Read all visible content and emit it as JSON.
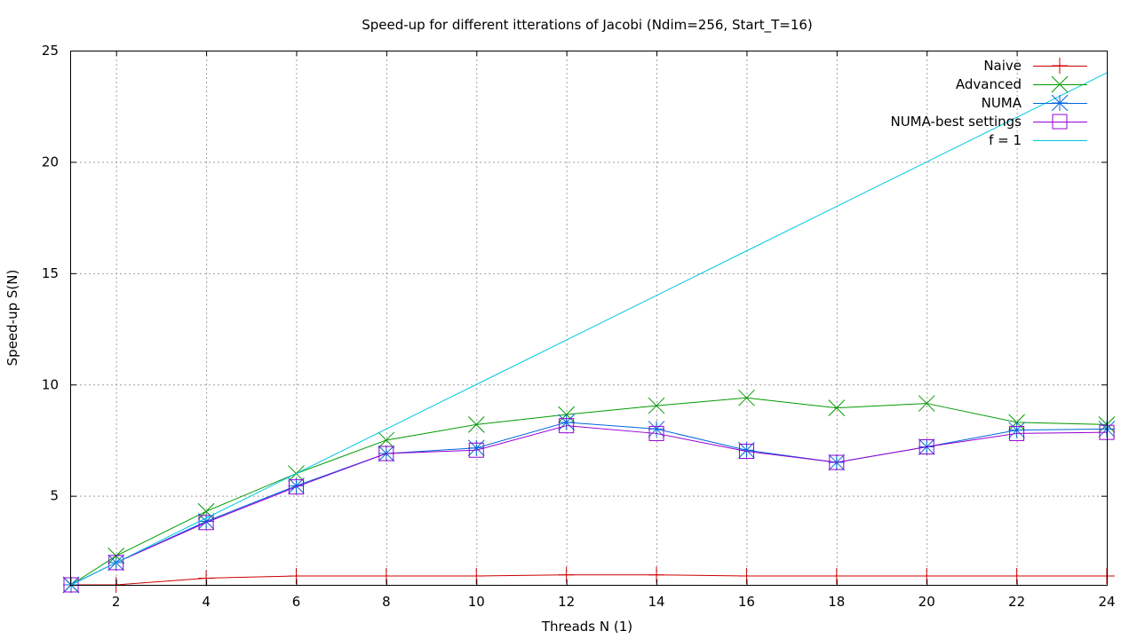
{
  "chart_data": {
    "type": "line",
    "title": "Speed-up for different itterations of Jacobi (Ndim=256, Start_T=16)",
    "xlabel": "Threads N (1)",
    "ylabel": "Speed-up S(N)",
    "xlim": [
      1,
      24
    ],
    "ylim": [
      1,
      25
    ],
    "xticks": [
      2,
      4,
      6,
      8,
      10,
      12,
      14,
      16,
      18,
      20,
      22,
      24
    ],
    "yticks": [
      5,
      10,
      15,
      20,
      25
    ],
    "grid": true,
    "legend_position": "top-right",
    "x": [
      1,
      2,
      4,
      6,
      8,
      10,
      12,
      14,
      16,
      18,
      20,
      22,
      24
    ],
    "series": [
      {
        "name": "Naive",
        "color": "#cc0000",
        "marker": "plus",
        "values": [
          1.0,
          1.0,
          1.3,
          1.4,
          1.4,
          1.4,
          1.45,
          1.45,
          1.4,
          1.4,
          1.4,
          1.4,
          1.4
        ]
      },
      {
        "name": "Advanced",
        "color": "#009900",
        "marker": "cross",
        "values": [
          1.0,
          2.3,
          4.3,
          6.0,
          7.5,
          8.2,
          8.65,
          9.05,
          9.4,
          8.95,
          9.15,
          8.3,
          8.2
        ]
      },
      {
        "name": "NUMA",
        "color": "#0066dd",
        "marker": "star",
        "values": [
          1.0,
          2.0,
          3.85,
          5.45,
          6.9,
          7.15,
          8.3,
          8.0,
          7.05,
          6.5,
          7.2,
          7.95,
          8.0
        ]
      },
      {
        "name": "NUMA-best settings",
        "color": "#9400d3",
        "marker": "box",
        "values": [
          1.0,
          2.0,
          3.8,
          5.4,
          6.9,
          7.05,
          8.15,
          7.8,
          7.0,
          6.5,
          7.2,
          7.8,
          7.85
        ]
      },
      {
        "name": "f = 1",
        "color": "#00c8e0",
        "marker": "none",
        "values": [
          1,
          2,
          4,
          6,
          8,
          10,
          12,
          14,
          16,
          18,
          20,
          22,
          24
        ]
      }
    ]
  }
}
